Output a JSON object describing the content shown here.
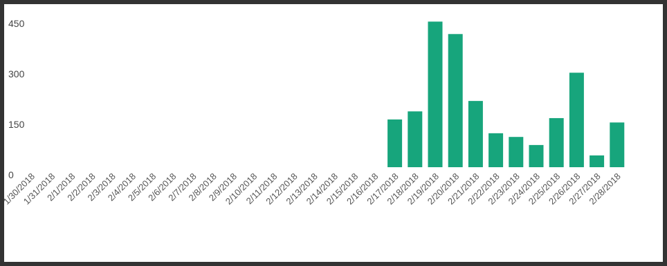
{
  "chart_data": {
    "type": "bar",
    "categories": [
      "1/30/2018",
      "1/31/2018",
      "2/1/2018",
      "2/2/2018",
      "2/3/2018",
      "2/4/2018",
      "2/5/2018",
      "2/6/2018",
      "2/7/2018",
      "2/8/2018",
      "2/9/2018",
      "2/10/2018",
      "2/11/2018",
      "2/12/2018",
      "2/13/2018",
      "2/14/2018",
      "2/15/2018",
      "2/16/2018",
      "2/17/2018",
      "2/18/2018",
      "2/19/2018",
      "2/20/2018",
      "2/21/2018",
      "2/22/2018",
      "2/23/2018",
      "2/24/2018",
      "2/25/2018",
      "2/26/2018",
      "2/27/2018",
      "2/28/2018"
    ],
    "values": [
      0,
      0,
      0,
      0,
      0,
      0,
      0,
      0,
      0,
      0,
      0,
      0,
      0,
      0,
      0,
      0,
      0,
      0,
      142,
      166,
      433,
      396,
      197,
      101,
      90,
      66,
      146,
      281,
      35,
      133
    ],
    "color": "#17a57c",
    "ylim": [
      0,
      450
    ],
    "yticks": [
      0,
      150,
      300,
      450
    ],
    "grid": false
  }
}
